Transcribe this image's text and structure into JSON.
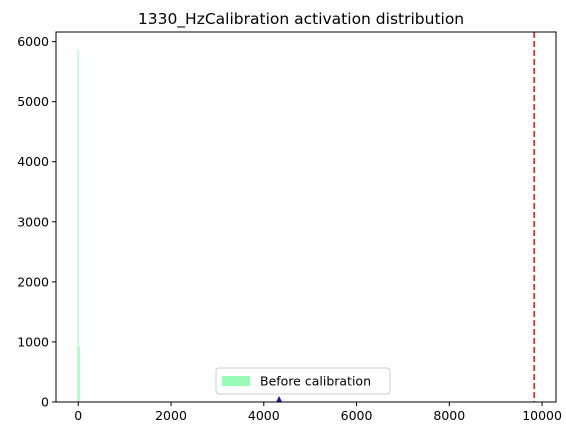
{
  "chart_data": {
    "type": "bar",
    "title": "1330_HzCalibration activation distribution",
    "xlabel": "",
    "ylabel": "",
    "xlim": [
      -480,
      10300
    ],
    "ylim": [
      0,
      6160
    ],
    "xticks": [
      0,
      2000,
      4000,
      6000,
      8000,
      10000
    ],
    "yticks": [
      0,
      1000,
      2000,
      3000,
      4000,
      5000,
      6000
    ],
    "series": [
      {
        "name": "Before calibration",
        "color": "#98fbb8",
        "bins": [
          {
            "x0": -15,
            "x1": 8,
            "value": 5870
          },
          {
            "x0": 8,
            "x1": 25,
            "value": 930
          }
        ]
      }
    ],
    "threshold_line": {
      "x": 9830,
      "color": "#e8201c",
      "style": "dashed"
    },
    "marker": {
      "x": 4330,
      "y": 0,
      "color": "#0a1ab8",
      "shape": "triangle-up"
    },
    "legend_position": "lower-center",
    "grid": false
  }
}
